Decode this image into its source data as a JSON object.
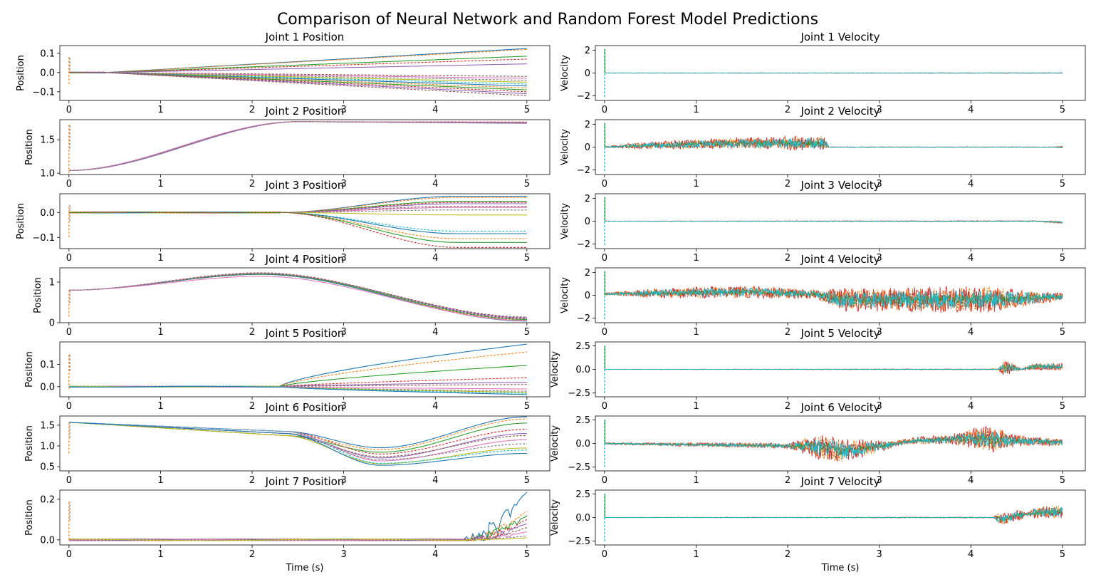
{
  "figure": {
    "suptitle": "Comparison of Neural Network and Random Forest Model Predictions"
  },
  "chart_data": [
    {
      "type": "line",
      "title": "Joint 1 Position",
      "ylabel": "Position",
      "xlabel": "",
      "xlim": [
        -0.1,
        5.25
      ],
      "ylim": [
        -0.145,
        0.14
      ],
      "xticks": [
        0,
        1,
        2,
        3,
        4,
        5
      ],
      "yticks": [
        -0.1,
        0.0,
        0.1
      ],
      "ytick_labels": [
        "−0.1",
        "0.0",
        "0.1"
      ],
      "shape": "diverge",
      "base": 0.0,
      "finals": [
        0.125,
        0.12,
        0.085,
        0.07,
        0.045,
        -0.02,
        -0.03,
        -0.04,
        -0.05,
        -0.06,
        -0.07,
        -0.08,
        -0.09,
        -0.1,
        -0.11,
        -0.12
      ],
      "start_spike": [
        -0.06,
        0.08
      ],
      "seed": 11
    },
    {
      "type": "line",
      "title": "Joint 2 Position",
      "ylabel": "Position",
      "xlabel": "",
      "xlim": [
        -0.1,
        5.25
      ],
      "ylim": [
        0.98,
        1.8
      ],
      "xticks": [
        0,
        1,
        2,
        3,
        4,
        5
      ],
      "yticks": [
        1.0,
        1.5
      ],
      "ytick_labels": [
        "1.0",
        "1.5"
      ],
      "shape": "sigmoid",
      "base": 1.04,
      "peak": 1.77,
      "finals": [
        1.75,
        1.755,
        1.76,
        1.765,
        1.745,
        1.75,
        1.76,
        1.755
      ],
      "start_spike": [
        1.0,
        1.73
      ],
      "seed": 12
    },
    {
      "type": "line",
      "title": "Joint 3 Position",
      "ylabel": "Position",
      "xlabel": "",
      "xlim": [
        -0.1,
        5.25
      ],
      "ylim": [
        -0.145,
        0.075
      ],
      "xticks": [
        0,
        1,
        2,
        3,
        4,
        5
      ],
      "yticks": [
        -0.1,
        0.0
      ],
      "ytick_labels": [
        "−0.1",
        "0.0"
      ],
      "shape": "diverge",
      "base": 0.0,
      "finals": [
        0.065,
        0.06,
        0.045,
        0.04,
        0.035,
        0.025,
        0.02,
        0.01,
        -0.01,
        -0.075,
        -0.085,
        -0.105,
        -0.12,
        -0.14
      ],
      "start_spike": [
        -0.1,
        0.03
      ],
      "seed": 13
    },
    {
      "type": "line",
      "title": "Joint 4 Position",
      "ylabel": "Position",
      "xlabel": "",
      "xlim": [
        -0.1,
        5.25
      ],
      "ylim": [
        0.0,
        1.35
      ],
      "xticks": [
        0,
        1,
        2,
        3,
        4,
        5
      ],
      "yticks": [
        0,
        1
      ],
      "ytick_labels": [
        "0",
        "1"
      ],
      "shape": "hump",
      "base": 0.8,
      "peak": 1.2,
      "finals": [
        0.04,
        0.06,
        0.08,
        0.1,
        0.12,
        0.14,
        0.05,
        0.09
      ],
      "start_spike": [
        0.15,
        0.8
      ],
      "seed": 14
    },
    {
      "type": "line",
      "title": "Joint 5 Position",
      "ylabel": "Position",
      "xlabel": "",
      "xlim": [
        -0.1,
        5.25
      ],
      "ylim": [
        -0.045,
        0.2
      ],
      "xticks": [
        0,
        1,
        2,
        3,
        4,
        5
      ],
      "yticks": [
        0.0,
        0.1
      ],
      "ytick_labels": [
        "0.0",
        "0.1"
      ],
      "shape": "diverge",
      "base": 0.0,
      "finals": [
        0.19,
        0.155,
        0.095,
        0.04,
        0.02,
        0.01,
        -0.01,
        -0.02,
        -0.025,
        -0.03,
        -0.035
      ],
      "start_spike": [
        -0.01,
        0.15
      ],
      "seed": 15
    },
    {
      "type": "line",
      "title": "Joint 6 Position",
      "ylabel": "Position",
      "xlabel": "",
      "xlim": [
        -0.1,
        5.25
      ],
      "ylim": [
        0.4,
        1.72
      ],
      "xticks": [
        0,
        1,
        2,
        3,
        4,
        5
      ],
      "yticks": [
        0.5,
        1.0,
        1.5
      ],
      "ytick_labels": [
        "0.5",
        "1.0",
        "1.5"
      ],
      "shape": "valley",
      "base": 1.57,
      "finals": [
        1.7,
        1.65,
        1.55,
        1.4,
        1.3,
        1.25,
        1.15,
        1.05,
        0.95,
        0.9,
        0.82
      ],
      "start_spike": [
        0.82,
        1.57
      ],
      "seed": 16
    },
    {
      "type": "line",
      "title": "Joint 7 Position",
      "ylabel": "Position",
      "xlabel": "Time (s)",
      "xlim": [
        -0.1,
        5.25
      ],
      "ylim": [
        -0.025,
        0.245
      ],
      "xticks": [
        0,
        1,
        2,
        3,
        4,
        5
      ],
      "yticks": [
        0.0,
        0.2
      ],
      "ytick_labels": [
        "0.0",
        "0.2"
      ],
      "shape": "lateRise",
      "base": 0.0,
      "finals": [
        0.235,
        0.14,
        0.12,
        0.1,
        0.08,
        0.06,
        0.04,
        0.02,
        0.01
      ],
      "start_spike": [
        0.0,
        0.19
      ],
      "seed": 17
    },
    {
      "type": "line",
      "title": "Joint 1 Velocity",
      "ylabel": "Velocity",
      "xlabel": "",
      "xlim": [
        -0.1,
        5.25
      ],
      "ylim": [
        -2.4,
        2.4
      ],
      "xticks": [
        0,
        1,
        2,
        3,
        4,
        5
      ],
      "yticks": [
        -2,
        0,
        2
      ],
      "ytick_labels": [
        "−2",
        "0",
        "2"
      ],
      "profile": [
        [
          0,
          0.02
        ],
        [
          5,
          0.03
        ]
      ],
      "spike": 2.1,
      "seed": 21
    },
    {
      "type": "line",
      "title": "Joint 2 Velocity",
      "ylabel": "Velocity",
      "xlabel": "",
      "xlim": [
        -0.1,
        5.25
      ],
      "ylim": [
        -2.4,
        2.4
      ],
      "xticks": [
        0,
        1,
        2,
        3,
        4,
        5
      ],
      "yticks": [
        -2,
        0,
        2
      ],
      "ytick_labels": [
        "−2",
        "0",
        "2"
      ],
      "profile": [
        [
          0,
          0.05
        ],
        [
          0.3,
          0.25
        ],
        [
          1.0,
          0.45
        ],
        [
          2.0,
          0.6
        ],
        [
          2.4,
          0.7
        ],
        [
          2.45,
          0.03
        ],
        [
          4.9,
          0.03
        ],
        [
          5,
          0.1
        ]
      ],
      "mean": [
        [
          0,
          0
        ],
        [
          0.5,
          0.15
        ],
        [
          1.5,
          0.35
        ],
        [
          2.4,
          0.35
        ],
        [
          2.45,
          0
        ],
        [
          5,
          0
        ]
      ],
      "spike": 2.1,
      "seed": 22
    },
    {
      "type": "line",
      "title": "Joint 3 Velocity",
      "ylabel": "Velocity",
      "xlabel": "",
      "xlim": [
        -0.1,
        5.25
      ],
      "ylim": [
        -2.4,
        2.4
      ],
      "xticks": [
        0,
        1,
        2,
        3,
        4,
        5
      ],
      "yticks": [
        -2,
        0,
        2
      ],
      "ytick_labels": [
        "−2",
        "0",
        "2"
      ],
      "profile": [
        [
          0,
          0.02
        ],
        [
          4.8,
          0.05
        ],
        [
          5,
          0.12
        ]
      ],
      "mean": [
        [
          0,
          0
        ],
        [
          4.7,
          0
        ],
        [
          5,
          -0.1
        ]
      ],
      "spike": 2.1,
      "seed": 23
    },
    {
      "type": "line",
      "title": "Joint 4 Velocity",
      "ylabel": "Velocity",
      "xlabel": "",
      "xlim": [
        -0.1,
        5.25
      ],
      "ylim": [
        -2.4,
        2.4
      ],
      "xticks": [
        0,
        1,
        2,
        3,
        4,
        5
      ],
      "yticks": [
        -2,
        0,
        2
      ],
      "ytick_labels": [
        "−2",
        "0",
        "2"
      ],
      "profile": [
        [
          0,
          0.1
        ],
        [
          0.5,
          0.4
        ],
        [
          1.5,
          0.6
        ],
        [
          2.3,
          0.4
        ],
        [
          2.6,
          1.0
        ],
        [
          3.3,
          1.1
        ],
        [
          4.2,
          1.2
        ],
        [
          5,
          0.3
        ]
      ],
      "mean": [
        [
          0,
          0.1
        ],
        [
          1.5,
          0.3
        ],
        [
          2.3,
          0.1
        ],
        [
          2.6,
          -0.4
        ],
        [
          3.5,
          -0.4
        ],
        [
          4.5,
          -0.3
        ],
        [
          5,
          -0.1
        ]
      ],
      "spike": 2.1,
      "seed": 24
    },
    {
      "type": "line",
      "title": "Joint 5 Velocity",
      "ylabel": "Velocity",
      "xlabel": "",
      "xlim": [
        -0.1,
        5.25
      ],
      "ylim": [
        -2.9,
        2.9
      ],
      "xticks": [
        0,
        1,
        2,
        3,
        4,
        5
      ],
      "yticks": [
        -2.5,
        0.0,
        2.5
      ],
      "ytick_labels": [
        "−2.5",
        "0.0",
        "2.5"
      ],
      "profile": [
        [
          0,
          0.02
        ],
        [
          4.3,
          0.05
        ],
        [
          4.35,
          0.8
        ],
        [
          4.45,
          0.6
        ],
        [
          4.55,
          0.05
        ],
        [
          4.7,
          0.4
        ],
        [
          5,
          0.4
        ]
      ],
      "mean": [
        [
          0,
          0
        ],
        [
          4.3,
          0
        ],
        [
          4.4,
          0.2
        ],
        [
          4.55,
          0
        ],
        [
          4.7,
          0.3
        ],
        [
          5,
          0.3
        ]
      ],
      "spike": 2.5,
      "seed": 25
    },
    {
      "type": "line",
      "title": "Joint 6 Velocity",
      "ylabel": "Velocity",
      "xlabel": "",
      "xlim": [
        -0.1,
        5.25
      ],
      "ylim": [
        -2.9,
        2.9
      ],
      "xticks": [
        0,
        1,
        2,
        3,
        4,
        5
      ],
      "yticks": [
        -2.5,
        0.0,
        2.5
      ],
      "ytick_labels": [
        "−2.5",
        "0.0",
        "2.5"
      ],
      "profile": [
        [
          0,
          0.1
        ],
        [
          2.0,
          0.3
        ],
        [
          2.4,
          1.5
        ],
        [
          2.8,
          1.0
        ],
        [
          3.2,
          0.3
        ],
        [
          3.8,
          0.6
        ],
        [
          4.2,
          1.5
        ],
        [
          4.5,
          0.6
        ],
        [
          5,
          0.4
        ]
      ],
      "mean": [
        [
          0,
          0
        ],
        [
          2.3,
          -0.3
        ],
        [
          2.6,
          -0.8
        ],
        [
          3.0,
          -0.3
        ],
        [
          3.4,
          0.3
        ],
        [
          4.0,
          0.5
        ],
        [
          5,
          0.1
        ]
      ],
      "spike": 2.5,
      "seed": 26
    },
    {
      "type": "line",
      "title": "Joint 7 Velocity",
      "ylabel": "Velocity",
      "xlabel": "Time (s)",
      "xlim": [
        -0.1,
        5.25
      ],
      "ylim": [
        -2.9,
        2.9
      ],
      "xticks": [
        0,
        1,
        2,
        3,
        4,
        5
      ],
      "yticks": [
        -2.5,
        0.0,
        2.5
      ],
      "ytick_labels": [
        "−2.5",
        "0.0",
        "2.5"
      ],
      "profile": [
        [
          0,
          0.02
        ],
        [
          4.25,
          0.05
        ],
        [
          4.3,
          0.6
        ],
        [
          4.55,
          0.6
        ],
        [
          4.6,
          0.1
        ],
        [
          4.7,
          0.6
        ],
        [
          5,
          0.8
        ]
      ],
      "mean": [
        [
          0,
          0
        ],
        [
          4.25,
          0
        ],
        [
          4.35,
          -0.2
        ],
        [
          4.5,
          0.2
        ],
        [
          4.7,
          0.5
        ],
        [
          5,
          0.6
        ]
      ],
      "spike": 2.5,
      "seed": 27
    }
  ],
  "series_colors": [
    "#1f77b4",
    "#ff7f0e",
    "#2ca02c",
    "#d62728",
    "#9467bd",
    "#8c564b",
    "#e377c2",
    "#7f7f7f",
    "#bcbd22",
    "#17becf"
  ]
}
